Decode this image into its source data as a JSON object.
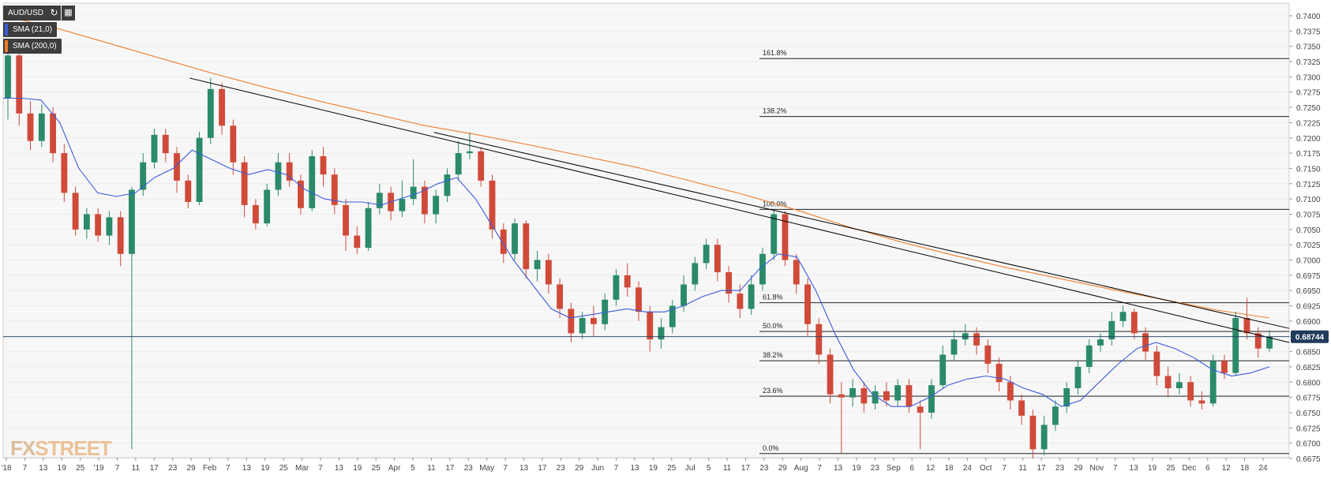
{
  "symbol": "AUD/USD",
  "indicators": [
    {
      "label": "SMA (21,0)",
      "color": "#3b5bdb"
    },
    {
      "label": "SMA (200,0)",
      "color": "#f07d2a"
    }
  ],
  "watermark": {
    "part1": "FX",
    "part2": "STREET"
  },
  "colors": {
    "up": "#2a8a6a",
    "down": "#d04a3a",
    "sma21": "#3b5bdb",
    "sma200": "#f07d2a",
    "trend": "#000000",
    "fib": "#000000"
  },
  "chart_data": {
    "type": "candlestick",
    "title": "AUD/USD",
    "ylim": [
      0.6675,
      0.74
    ],
    "y_ticks": [
      "0.7400",
      "0.7375",
      "0.7350",
      "0.7325",
      "0.7300",
      "0.7275",
      "0.7250",
      "0.7225",
      "0.7200",
      "0.7175",
      "0.7150",
      "0.7125",
      "0.7100",
      "0.7075",
      "0.7050",
      "0.7025",
      "0.7000",
      "0.6975",
      "0.6950",
      "0.6925",
      "0.6900",
      "0.6875",
      "0.6850",
      "0.6825",
      "0.6800",
      "0.6775",
      "0.6750",
      "0.6725",
      "0.6700",
      "0.6675"
    ],
    "x_ticks": [
      "'18",
      "7",
      "13",
      "19",
      "25",
      "'19",
      "7",
      "11",
      "17",
      "23",
      "29",
      "Feb",
      "7",
      "13",
      "19",
      "25",
      "Mar",
      "7",
      "13",
      "19",
      "25",
      "Apr",
      "5",
      "11",
      "17",
      "23",
      "May",
      "7",
      "13",
      "17",
      "23",
      "29",
      "Jun",
      "7",
      "13",
      "19",
      "25",
      "Jul",
      "5",
      "11",
      "17",
      "23",
      "29",
      "Aug",
      "7",
      "13",
      "19",
      "23",
      "Sep",
      "6",
      "12",
      "18",
      "24",
      "Oct",
      "7",
      "11",
      "17",
      "23",
      "29",
      "Nov",
      "7",
      "13",
      "19",
      "25",
      "Dec",
      "6",
      "12",
      "18",
      "24"
    ],
    "current_price": "0.68744",
    "fibonacci": [
      {
        "label": "161.8%",
        "value": 0.733
      },
      {
        "label": "138.2%",
        "value": 0.7235
      },
      {
        "label": "100.0%",
        "value": 0.7083
      },
      {
        "label": "61.8%",
        "value": 0.693
      },
      {
        "label": "50.0%",
        "value": 0.6883
      },
      {
        "label": "38.2%",
        "value": 0.6835
      },
      {
        "label": "23.6%",
        "value": 0.6777
      },
      {
        "label": "0.0%",
        "value": 0.6683
      }
    ],
    "trendlines": [
      {
        "from": [
          0.145,
          0.7298
        ],
        "to": [
          1.0,
          0.6865
        ]
      },
      {
        "from": [
          0.335,
          0.7209
        ],
        "to": [
          1.0,
          0.6888
        ]
      }
    ],
    "series": [
      {
        "name": "SMA (21,0)",
        "values": [
          0.7265,
          0.7265,
          0.7262,
          0.7225,
          0.715,
          0.711,
          0.7104,
          0.711,
          0.7135,
          0.715,
          0.718,
          0.7165,
          0.715,
          0.714,
          0.7148,
          0.714,
          0.7115,
          0.71,
          0.7095,
          0.7095,
          0.709,
          0.71,
          0.711,
          0.7125,
          0.7135,
          0.71,
          0.705,
          0.7,
          0.696,
          0.692,
          0.6905,
          0.691,
          0.6915,
          0.692,
          0.6915,
          0.6915,
          0.6925,
          0.694,
          0.695,
          0.695,
          0.6985,
          0.701,
          0.7005,
          0.695,
          0.688,
          0.682,
          0.678,
          0.676,
          0.676,
          0.6775,
          0.6795,
          0.6805,
          0.681,
          0.6805,
          0.679,
          0.678,
          0.676,
          0.677,
          0.68,
          0.683,
          0.6855,
          0.6865,
          0.6855,
          0.684,
          0.682,
          0.681,
          0.6815,
          0.6825
        ]
      },
      {
        "name": "SMA (200,0)",
        "values": [
          0.74,
          0.738,
          0.7355,
          0.733,
          0.7305,
          0.7282,
          0.726,
          0.724,
          0.722,
          0.7205,
          0.7188,
          0.717,
          0.7152,
          0.713,
          0.7108,
          0.7083,
          0.7055,
          0.703,
          0.7008,
          0.6988,
          0.697,
          0.6952,
          0.6935,
          0.6918,
          0.6905
        ]
      }
    ],
    "candles": [
      [
        0.7265,
        0.7335,
        0.735,
        0.723
      ],
      [
        0.7335,
        0.724,
        0.7345,
        0.722
      ],
      [
        0.724,
        0.7195,
        0.726,
        0.718
      ],
      [
        0.7195,
        0.724,
        0.7255,
        0.7185
      ],
      [
        0.724,
        0.7175,
        0.725,
        0.716
      ],
      [
        0.7175,
        0.711,
        0.719,
        0.7095
      ],
      [
        0.711,
        0.705,
        0.712,
        0.704
      ],
      [
        0.705,
        0.7075,
        0.7085,
        0.7035
      ],
      [
        0.7075,
        0.704,
        0.7085,
        0.703
      ],
      [
        0.704,
        0.707,
        0.708,
        0.7025
      ],
      [
        0.707,
        0.701,
        0.708,
        0.699
      ],
      [
        0.701,
        0.7115,
        0.712,
        0.669
      ],
      [
        0.7115,
        0.716,
        0.7175,
        0.7105
      ],
      [
        0.716,
        0.7205,
        0.7215,
        0.715
      ],
      [
        0.7205,
        0.7175,
        0.7215,
        0.716
      ],
      [
        0.7175,
        0.713,
        0.7185,
        0.711
      ],
      [
        0.713,
        0.7095,
        0.714,
        0.7085
      ],
      [
        0.7095,
        0.72,
        0.721,
        0.709
      ],
      [
        0.72,
        0.728,
        0.7298,
        0.719
      ],
      [
        0.728,
        0.722,
        0.729,
        0.7205
      ],
      [
        0.722,
        0.716,
        0.723,
        0.714
      ],
      [
        0.716,
        0.709,
        0.717,
        0.707
      ],
      [
        0.709,
        0.706,
        0.71,
        0.705
      ],
      [
        0.706,
        0.7115,
        0.7125,
        0.7055
      ],
      [
        0.7115,
        0.716,
        0.7175,
        0.7105
      ],
      [
        0.716,
        0.713,
        0.7175,
        0.712
      ],
      [
        0.713,
        0.7085,
        0.714,
        0.7075
      ],
      [
        0.7085,
        0.717,
        0.718,
        0.708
      ],
      [
        0.717,
        0.714,
        0.7185,
        0.712
      ],
      [
        0.714,
        0.709,
        0.715,
        0.7075
      ],
      [
        0.709,
        0.704,
        0.71,
        0.7015
      ],
      [
        0.704,
        0.702,
        0.7055,
        0.701
      ],
      [
        0.702,
        0.7085,
        0.7095,
        0.7015
      ],
      [
        0.7085,
        0.711,
        0.7125,
        0.7075
      ],
      [
        0.711,
        0.708,
        0.712,
        0.7065
      ],
      [
        0.708,
        0.71,
        0.713,
        0.707
      ],
      [
        0.71,
        0.712,
        0.7165,
        0.709
      ],
      [
        0.712,
        0.7075,
        0.713,
        0.706
      ],
      [
        0.7075,
        0.7105,
        0.7115,
        0.706
      ],
      [
        0.7105,
        0.714,
        0.715,
        0.7095
      ],
      [
        0.714,
        0.7175,
        0.7195,
        0.713
      ],
      [
        0.7175,
        0.7178,
        0.7209,
        0.7165
      ],
      [
        0.7178,
        0.713,
        0.7185,
        0.712
      ],
      [
        0.713,
        0.705,
        0.714,
        0.7035
      ],
      [
        0.705,
        0.701,
        0.706,
        0.6995
      ],
      [
        0.701,
        0.706,
        0.7068,
        0.7
      ],
      [
        0.706,
        0.6985,
        0.7065,
        0.697
      ],
      [
        0.6985,
        0.7,
        0.7015,
        0.6965
      ],
      [
        0.7,
        0.696,
        0.701,
        0.6945
      ],
      [
        0.696,
        0.692,
        0.697,
        0.6905
      ],
      [
        0.692,
        0.688,
        0.693,
        0.6865
      ],
      [
        0.688,
        0.6905,
        0.6915,
        0.687
      ],
      [
        0.6905,
        0.6895,
        0.6925,
        0.6875
      ],
      [
        0.6895,
        0.6935,
        0.6945,
        0.6885
      ],
      [
        0.6935,
        0.6975,
        0.6985,
        0.6925
      ],
      [
        0.6975,
        0.6955,
        0.6995,
        0.694
      ],
      [
        0.6955,
        0.6915,
        0.6965,
        0.69
      ],
      [
        0.6915,
        0.687,
        0.6925,
        0.685
      ],
      [
        0.687,
        0.689,
        0.6905,
        0.6855
      ],
      [
        0.689,
        0.6925,
        0.6935,
        0.688
      ],
      [
        0.6925,
        0.696,
        0.6975,
        0.6915
      ],
      [
        0.696,
        0.6995,
        0.7005,
        0.695
      ],
      [
        0.6995,
        0.7025,
        0.7035,
        0.6985
      ],
      [
        0.7025,
        0.698,
        0.7035,
        0.6965
      ],
      [
        0.698,
        0.6945,
        0.699,
        0.693
      ],
      [
        0.6945,
        0.692,
        0.696,
        0.6905
      ],
      [
        0.692,
        0.696,
        0.6975,
        0.691
      ],
      [
        0.696,
        0.701,
        0.702,
        0.695
      ],
      [
        0.701,
        0.7075,
        0.7083,
        0.7
      ],
      [
        0.7075,
        0.7,
        0.708,
        0.699
      ],
      [
        0.7,
        0.696,
        0.701,
        0.6945
      ],
      [
        0.696,
        0.6895,
        0.697,
        0.6875
      ],
      [
        0.6895,
        0.6845,
        0.6905,
        0.683
      ],
      [
        0.6845,
        0.678,
        0.6855,
        0.6765
      ],
      [
        0.678,
        0.6775,
        0.68,
        0.6683
      ],
      [
        0.6775,
        0.679,
        0.6805,
        0.676
      ],
      [
        0.679,
        0.6765,
        0.68,
        0.675
      ],
      [
        0.6765,
        0.6785,
        0.6795,
        0.6755
      ],
      [
        0.6785,
        0.677,
        0.68,
        0.676
      ],
      [
        0.677,
        0.6795,
        0.6805,
        0.676
      ],
      [
        0.6795,
        0.676,
        0.6805,
        0.675
      ],
      [
        0.676,
        0.675,
        0.677,
        0.669
      ],
      [
        0.675,
        0.6795,
        0.6805,
        0.674
      ],
      [
        0.6795,
        0.6845,
        0.686,
        0.679
      ],
      [
        0.6845,
        0.687,
        0.6885,
        0.6835
      ],
      [
        0.687,
        0.688,
        0.6895,
        0.686
      ],
      [
        0.688,
        0.686,
        0.689,
        0.6845
      ],
      [
        0.686,
        0.683,
        0.687,
        0.6815
      ],
      [
        0.683,
        0.68,
        0.684,
        0.6785
      ],
      [
        0.68,
        0.677,
        0.681,
        0.6755
      ],
      [
        0.677,
        0.6745,
        0.678,
        0.673
      ],
      [
        0.6745,
        0.669,
        0.6755,
        0.6675
      ],
      [
        0.669,
        0.673,
        0.6745,
        0.668
      ],
      [
        0.673,
        0.676,
        0.677,
        0.672
      ],
      [
        0.676,
        0.679,
        0.68,
        0.675
      ],
      [
        0.679,
        0.6825,
        0.6835,
        0.678
      ],
      [
        0.6825,
        0.686,
        0.687,
        0.6815
      ],
      [
        0.686,
        0.687,
        0.688,
        0.685
      ],
      [
        0.687,
        0.69,
        0.6915,
        0.686
      ],
      [
        0.69,
        0.6915,
        0.6925,
        0.689
      ],
      [
        0.6915,
        0.688,
        0.692,
        0.687
      ],
      [
        0.688,
        0.685,
        0.689,
        0.6835
      ],
      [
        0.685,
        0.681,
        0.686,
        0.6795
      ],
      [
        0.681,
        0.679,
        0.6825,
        0.6775
      ],
      [
        0.679,
        0.68,
        0.6815,
        0.678
      ],
      [
        0.68,
        0.677,
        0.681,
        0.676
      ],
      [
        0.677,
        0.6765,
        0.6785,
        0.6755
      ],
      [
        0.6765,
        0.6835,
        0.6845,
        0.676
      ],
      [
        0.6835,
        0.6815,
        0.6845,
        0.6805
      ],
      [
        0.6815,
        0.6905,
        0.6915,
        0.681
      ],
      [
        0.6905,
        0.688,
        0.6938,
        0.687
      ],
      [
        0.688,
        0.6855,
        0.689,
        0.684
      ],
      [
        0.6855,
        0.6874,
        0.6885,
        0.685
      ]
    ]
  }
}
